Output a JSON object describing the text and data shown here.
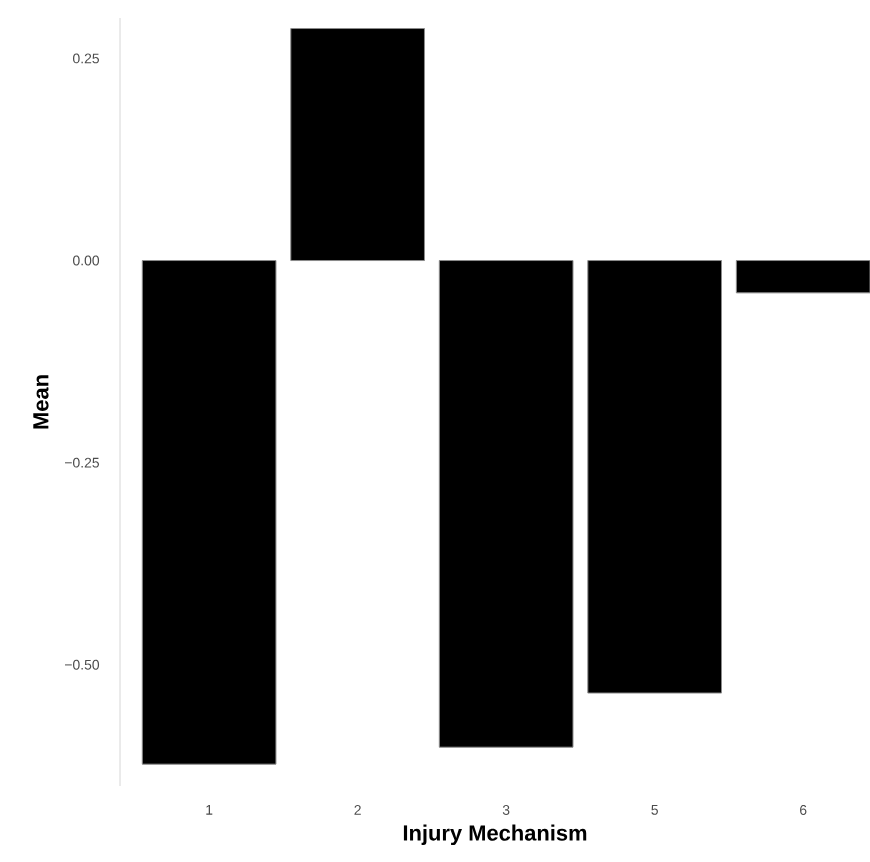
{
  "chart_data": {
    "type": "bar",
    "xlabel": "Injury Mechanism",
    "ylabel": "Mean",
    "categories": [
      "1",
      "2",
      "3",
      "5",
      "6"
    ],
    "values": [
      -0.623,
      0.287,
      -0.602,
      -0.535,
      -0.04
    ],
    "color": "#000000",
    "ylim": [
      -0.65,
      0.3
    ],
    "yticks": [
      {
        "value": 0.25,
        "label": "0.25"
      },
      {
        "value": 0,
        "label": "0.00"
      },
      {
        "value": -0.25,
        "label": "−0.25"
      },
      {
        "value": -0.5,
        "label": "−0.50"
      }
    ]
  }
}
